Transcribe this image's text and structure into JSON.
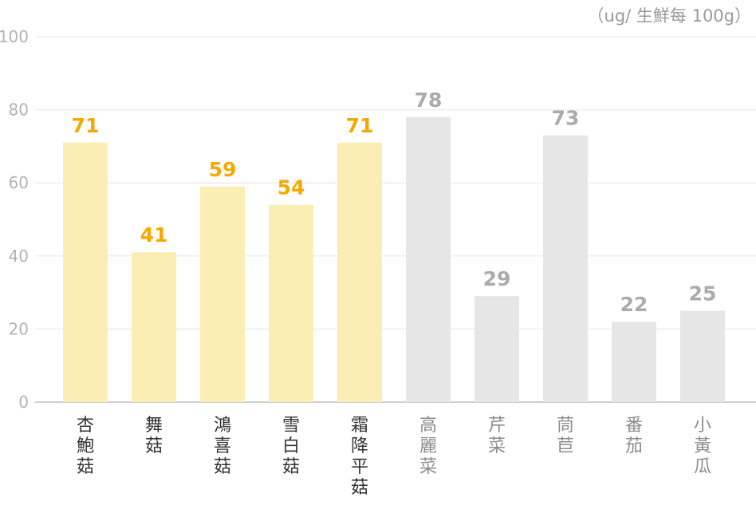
{
  "unit_label": "（ug/ 生鮮每 100g）",
  "chart_data": {
    "type": "bar",
    "categories": [
      "杏鮑菇",
      "舞菇",
      "鴻喜菇",
      "雪白菇",
      "霜降平菇",
      "高麗菜",
      "芹菜",
      "茼苣",
      "番茄",
      "小黃瓜"
    ],
    "values": [
      71,
      41,
      59,
      54,
      71,
      78,
      29,
      73,
      22,
      25
    ],
    "groups": [
      "mushroom",
      "mushroom",
      "mushroom",
      "mushroom",
      "mushroom",
      "vegetable",
      "vegetable",
      "vegetable",
      "vegetable",
      "vegetable"
    ],
    "title": "",
    "xlabel": "",
    "ylabel": "",
    "ylim": [
      0,
      100
    ],
    "yticks": [
      0,
      20,
      40,
      60,
      80,
      100
    ],
    "grid": true,
    "colors": {
      "mushroom_bar": "#fbeeb4",
      "mushroom_label": "#f5a800",
      "vegetable_bar": "#e6e6e6",
      "vegetable_label": "#ababab",
      "mushroom_category": "#333333",
      "vegetable_category": "#8c8c8c",
      "grid": "#ededed",
      "axis": "#cfcfcf"
    }
  }
}
